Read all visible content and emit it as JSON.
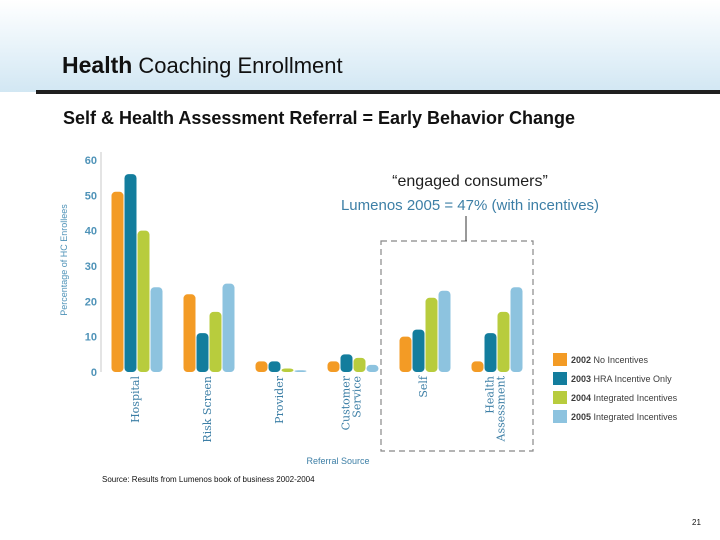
{
  "slide": {
    "title_bold": "Health",
    "title_rest": "Coaching Enrollment",
    "subtitle": "Self & Health Assessment Referral = Early Behavior Change",
    "source": "Source: Results from Lumenos book of business 2002-2004",
    "page_number": "21"
  },
  "chart_data": {
    "type": "bar",
    "title": "",
    "xlabel": "Referral Source",
    "ylabel": "Percentage of HC Enrollees",
    "ylim": [
      0,
      60
    ],
    "yticks": [
      0,
      10,
      20,
      30,
      40,
      50,
      60
    ],
    "grid": false,
    "legend_position": "right",
    "categories": [
      "Hospital",
      "Risk Screen",
      "Provider",
      "Customer Service",
      "Self",
      "Health Assessment"
    ],
    "category_lines": [
      [
        "Hospital"
      ],
      [
        "Risk Screen"
      ],
      [
        "Provider"
      ],
      [
        "Customer",
        "Service"
      ],
      [
        "Self"
      ],
      [
        "Health",
        "Assessment"
      ]
    ],
    "series": [
      {
        "name": "2002 No Incentives",
        "year": "2002",
        "desc": "No Incentives",
        "color": "#f39b25",
        "values": [
          51,
          22,
          3,
          3,
          10,
          3
        ]
      },
      {
        "name": "2003 HRA Incentive Only",
        "year": "2003",
        "desc": "HRA Incentive Only",
        "color": "#137d9d",
        "values": [
          56,
          11,
          3,
          5,
          12,
          11
        ]
      },
      {
        "name": "2004 Integrated Incentives",
        "year": "2004",
        "desc": "Integrated Incentives",
        "color": "#b8cc3d",
        "values": [
          40,
          17,
          1,
          4,
          21,
          17
        ]
      },
      {
        "name": "2005 Integrated Incentives",
        "year": "2005",
        "desc": "Integrated Incentives",
        "color": "#8dc3df",
        "values": [
          24,
          25,
          0.5,
          2,
          23,
          24
        ]
      }
    ],
    "highlighted_categories": [
      "Self",
      "Health Assessment"
    ],
    "annotation": {
      "heading": "“engaged consumers”",
      "text": "Lumenos 2005 = 47% (with incentives)"
    }
  }
}
